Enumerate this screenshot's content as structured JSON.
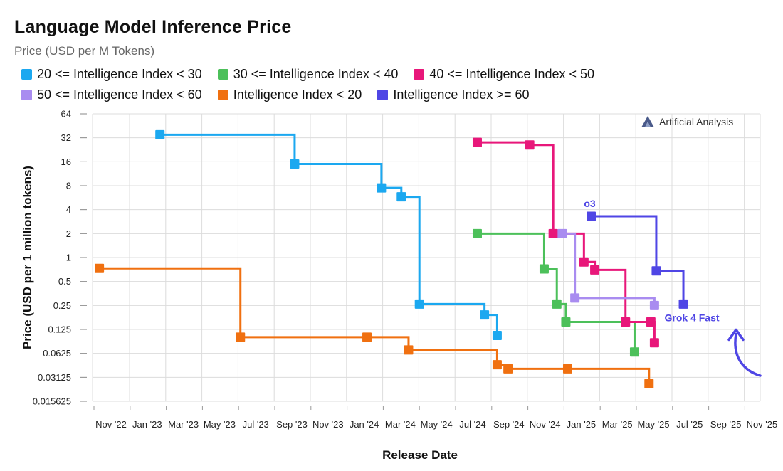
{
  "chart_data": {
    "type": "line",
    "step": true,
    "title": "Language Model Inference Price",
    "subtitle": "Price (USD per M Tokens)",
    "xlabel": "Release Date",
    "ylabel": "Price (USD per 1 million tokens)",
    "y_scale": "log2",
    "ylim": [
      0.015625,
      64
    ],
    "y_ticks": [
      64,
      32,
      16,
      8,
      4,
      2,
      1,
      0.5,
      0.25,
      0.125,
      0.0625,
      0.03125,
      0.015625
    ],
    "y_tick_labels": [
      "64",
      "32",
      "16",
      "8",
      "4",
      "2",
      "1",
      "0.5",
      "0.25",
      "0.125",
      "0.0625",
      "0.03125",
      "0.015625"
    ],
    "x_ticks": [
      "Nov '22",
      "Jan '23",
      "Mar '23",
      "May '23",
      "Jul '23",
      "Sep '23",
      "Nov '23",
      "Jan '24",
      "Mar '24",
      "May '24",
      "Jul '24",
      "Sep '24",
      "Nov '24",
      "Jan '25",
      "Mar '25",
      "May '25",
      "Jul '25",
      "Sep '25",
      "Nov '25"
    ],
    "x_units": "months since Nov 2022",
    "grid": true,
    "legend_position": "top",
    "series": [
      {
        "name": "20 <= Intelligence Index < 30",
        "color": "#1ba8f0",
        "points": [
          [
            3.65,
            35
          ],
          [
            11.1,
            15
          ],
          [
            15.9,
            7.5
          ],
          [
            17.0,
            5.8
          ],
          [
            18.0,
            0.26
          ],
          [
            21.6,
            0.19
          ],
          [
            22.3,
            0.105
          ]
        ]
      },
      {
        "name": "30 <= Intelligence Index < 40",
        "color": "#4cc05a",
        "points": [
          [
            21.2,
            2.0
          ],
          [
            24.9,
            0.72
          ],
          [
            25.6,
            0.26
          ],
          [
            26.1,
            0.155
          ],
          [
            29.9,
            0.065
          ]
        ]
      },
      {
        "name": "40 <= Intelligence Index < 50",
        "color": "#e8177a",
        "points": [
          [
            21.2,
            28
          ],
          [
            24.1,
            26
          ],
          [
            25.4,
            2.0
          ],
          [
            27.1,
            0.88
          ],
          [
            27.7,
            0.7
          ],
          [
            29.4,
            0.155
          ],
          [
            30.8,
            0.155
          ],
          [
            31.0,
            0.085
          ]
        ]
      },
      {
        "name": "50 <= Intelligence Index < 60",
        "color": "#a98cf0",
        "points": [
          [
            25.9,
            2.0
          ],
          [
            26.6,
            0.31
          ],
          [
            31.0,
            0.25
          ]
        ]
      },
      {
        "name": "Intelligence Index < 20",
        "color": "#f07010",
        "points": [
          [
            0.3,
            0.73
          ],
          [
            8.1,
            0.1
          ],
          [
            15.1,
            0.1
          ],
          [
            17.4,
            0.069
          ],
          [
            22.3,
            0.045
          ],
          [
            22.9,
            0.04
          ],
          [
            26.2,
            0.04
          ],
          [
            30.7,
            0.026
          ]
        ]
      },
      {
        "name": "Intelligence Index >= 60",
        "color": "#4f46e5",
        "points": [
          [
            27.5,
            3.3
          ],
          [
            31.1,
            0.68
          ],
          [
            32.6,
            0.26
          ]
        ]
      }
    ],
    "annotations": [
      {
        "text": "o3",
        "x": 27.5,
        "y": 3.3,
        "color": "#4f46e5"
      },
      {
        "text": "Grok 4 Fast",
        "x": 32.6,
        "y": 0.26,
        "color": "#4f46e5"
      }
    ],
    "watermark": "Artificial Analysis"
  }
}
